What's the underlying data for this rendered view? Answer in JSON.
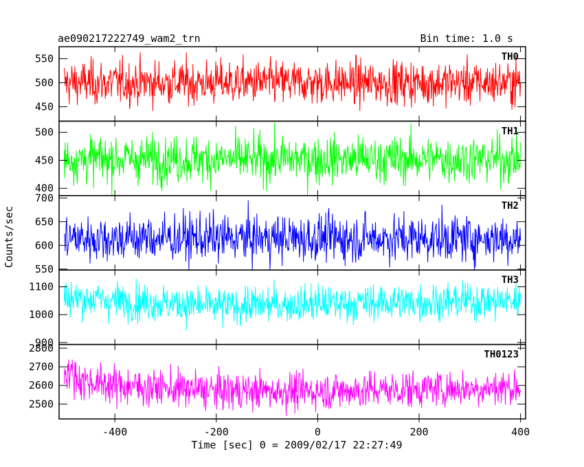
{
  "chart_data": {
    "type": "line",
    "title": "ae090217222749_wam2_trn",
    "bin_time_label": "Bin time: 1.0 s",
    "xlabel": "Time [sec] 0 = 2009/02/17 22:27:49",
    "ylabel": "Counts/sec",
    "xlim": [
      -510,
      410
    ],
    "x_ticks": [
      -400,
      -200,
      0,
      200,
      400
    ],
    "x_range_data": [
      -500,
      400
    ],
    "grid": false,
    "panels": [
      {
        "name": "TH0",
        "color": "#ff0000",
        "ylim": [
          420,
          575
        ],
        "y_ticks": [
          450,
          500,
          550
        ],
        "mean": 500,
        "sigma": 23,
        "trend": []
      },
      {
        "name": "TH1",
        "color": "#00ff00",
        "ylim": [
          387,
          520
        ],
        "y_ticks": [
          400,
          450,
          500
        ],
        "mean": 452,
        "sigma": 21,
        "trend": []
      },
      {
        "name": "TH2",
        "color": "#0000ff",
        "ylim": [
          548,
          705
        ],
        "y_ticks": [
          550,
          600,
          650,
          700
        ],
        "mean": 615,
        "sigma": 25,
        "trend": []
      },
      {
        "name": "TH3",
        "color": "#00ffff",
        "ylim": [
          893,
          1160
        ],
        "y_ticks": [
          900,
          1000,
          1100
        ],
        "mean": 1045,
        "sigma": 33,
        "trend": [
          [
            -500,
            1060
          ],
          [
            -440,
            1055
          ],
          [
            -200,
            1030
          ],
          [
            0,
            1040
          ],
          [
            400,
            1050
          ]
        ]
      },
      {
        "name": "TH0123",
        "color": "#ff00ff",
        "ylim": [
          2420,
          2820
        ],
        "y_ticks": [
          2500,
          2600,
          2700,
          2800
        ],
        "mean": 2590,
        "sigma": 50,
        "trend": [
          [
            -500,
            2690
          ],
          [
            -470,
            2630
          ],
          [
            -400,
            2600
          ],
          [
            -200,
            2570
          ],
          [
            0,
            2570
          ],
          [
            400,
            2590
          ]
        ]
      }
    ]
  }
}
